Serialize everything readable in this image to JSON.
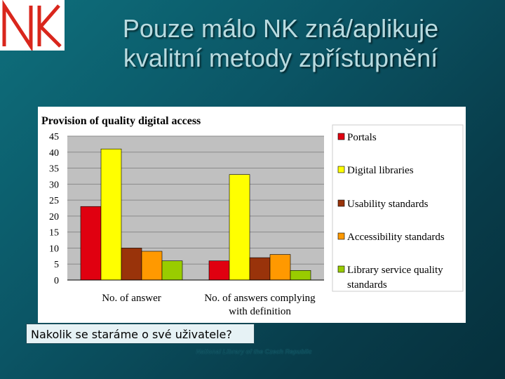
{
  "logo": {
    "text": "NK",
    "color": "#d9261c"
  },
  "slide": {
    "title_line1": "Pouze málo NK zná/aplikuje",
    "title_line2": "kvalitní metody zpřístupnění",
    "caption": "Nakolik se staráme o své uživatele?",
    "footer": "National Library of the Czech Republic"
  },
  "chart_data": {
    "type": "bar",
    "title": "Provision of quality digital access",
    "categories": [
      "No. of answer",
      "No. of answers complying with definition"
    ],
    "category_lines": [
      [
        "No. of answer"
      ],
      [
        "No. of answers complying",
        "with definition"
      ]
    ],
    "series": [
      {
        "name": "Portals",
        "color": "#e00010",
        "values": [
          23,
          6
        ]
      },
      {
        "name": "Digital libraries",
        "color": "#ffff00",
        "values": [
          41,
          33
        ]
      },
      {
        "name": "Usability standards",
        "color": "#99330a",
        "values": [
          10,
          7
        ]
      },
      {
        "name": "Accessibility standards",
        "color": "#ff9900",
        "values": [
          9,
          8
        ]
      },
      {
        "name": "Library service quality standards",
        "color": "#99cc00",
        "values": [
          6,
          3
        ]
      }
    ],
    "legend_lines": [
      [
        "Portals"
      ],
      [
        "Digital libraries"
      ],
      [
        "Usability standards"
      ],
      [
        "Accessibility standards"
      ],
      [
        "Library service quality",
        "standards"
      ]
    ],
    "ylim": [
      0,
      45
    ],
    "yticks": [
      0,
      5,
      10,
      15,
      20,
      25,
      30,
      35,
      40,
      45
    ],
    "grid": true,
    "legend_position": "right"
  }
}
